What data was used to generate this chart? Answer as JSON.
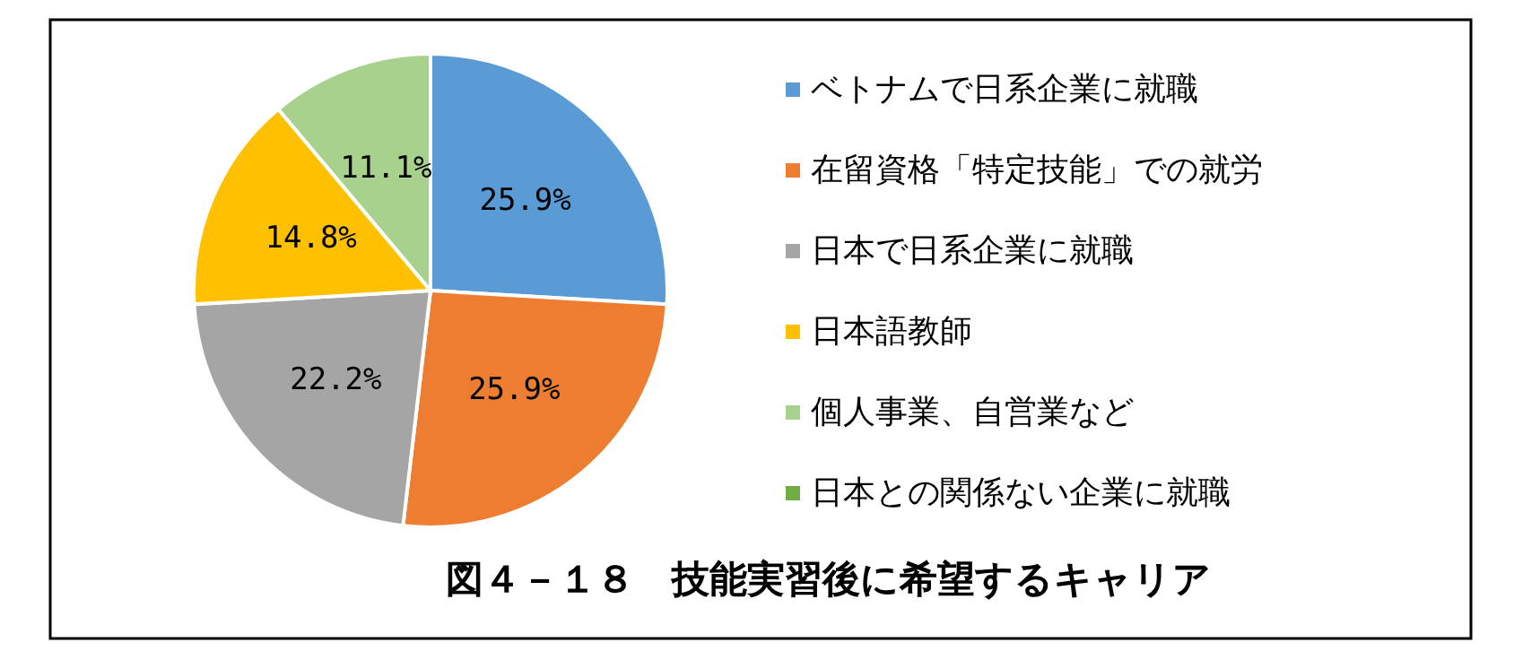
{
  "chart_data": {
    "type": "pie",
    "title": "図４－１８　技能実習後に希望するキャリア",
    "categories": [
      "ベトナムで日系企業に就職",
      "在留資格「特定技能」での就労",
      "日本で日系企業に就職",
      "日本語教師",
      "個人事業、自営業など",
      "日本との関係ない企業に就職"
    ],
    "values": [
      25.9,
      25.9,
      22.2,
      14.8,
      11.1,
      0
    ],
    "colors": [
      "#5b9bd5",
      "#ed7d31",
      "#a5a5a5",
      "#ffc000",
      "#a9d18e",
      "#70ad47"
    ],
    "value_labels": [
      "25.9%",
      "25.9%",
      "22.2%",
      "14.8%",
      "11.1%",
      null
    ],
    "legend": "right"
  }
}
